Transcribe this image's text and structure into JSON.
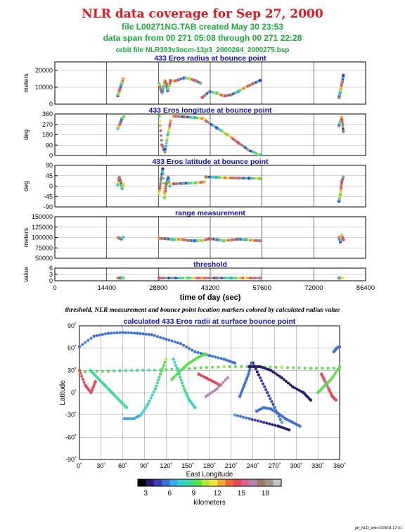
{
  "header": {
    "title": "NLR data coverage for Sep 27, 2000",
    "line1": "file L00271NG.TAB created May 30 23:53",
    "line2": "data span from 00 271 05:08 through 00 271 22:28",
    "line3": "orbit file NLR393v3ocm-13p3_2000264_2000275.bsp"
  },
  "caption": "threshold, NLR measurement and bounce point location markers colored by calculated radius value",
  "footer": "plt_NLR_info 010504 17:41",
  "colors": {
    "title": "#e8141e",
    "subtitle": "#1faa3c",
    "panel_title": "#1010c8",
    "colormap": [
      "#000000",
      "#2a1a6e",
      "#3b3fb0",
      "#3f72d6",
      "#3fa8e6",
      "#35d0d0",
      "#3ed89a",
      "#5ae04a",
      "#b4e63c",
      "#ece83c",
      "#f0a83c",
      "#ee6a3c",
      "#e8485a",
      "#d86496",
      "#b484b0",
      "#9c7a5a",
      "#a09a8a",
      "#c4c4c4"
    ]
  },
  "chart_data": [
    {
      "type": "scatter",
      "title": "433 Eros radius at bounce point",
      "ylabel": "meters",
      "xlim": [
        0,
        86400
      ],
      "ylim": [
        0,
        25000
      ],
      "yticks": [
        "0",
        "10000",
        "20000"
      ],
      "ytick_values": [
        0,
        10000,
        20000
      ],
      "grid": true,
      "segments": [
        {
          "x": [
            17500,
            17800,
            18100,
            18400,
            18700,
            19000
          ],
          "y": [
            5000,
            7000,
            9000,
            11000,
            13000,
            15000
          ]
        },
        {
          "x": [
            29000,
            29400,
            29800,
            30200,
            30600,
            31000,
            31400,
            31800,
            32200
          ],
          "y": [
            12000,
            9000,
            7000,
            10000,
            14000,
            12000,
            8000,
            11000,
            14000
          ]
        },
        {
          "x": [
            33000,
            34500,
            36000,
            37500,
            39000,
            40500
          ],
          "y": [
            13500,
            14500,
            15500,
            15000,
            14000,
            12500
          ]
        },
        {
          "x": [
            41000,
            43000,
            45000,
            47000,
            49000,
            51000,
            53000,
            55000,
            57000
          ],
          "y": [
            4000,
            7500,
            6500,
            4800,
            5500,
            7500,
            10000,
            12000,
            14000
          ]
        },
        {
          "x": [
            79000,
            79300,
            79600,
            79900,
            80200
          ],
          "y": [
            4000,
            7000,
            10000,
            13000,
            17000
          ]
        }
      ]
    },
    {
      "type": "scatter",
      "title": "433 Eros longitude at bounce point",
      "ylabel": "deg",
      "xlim": [
        0,
        86400
      ],
      "ylim": [
        0,
        360
      ],
      "yticks": [
        "0",
        "90",
        "180",
        "270",
        "360"
      ],
      "ytick_values": [
        0,
        90,
        180,
        270,
        360
      ],
      "grid": true,
      "segments": [
        {
          "x": [
            17500,
            17900,
            18300,
            18700,
            19100
          ],
          "y": [
            235,
            260,
            290,
            320,
            335
          ]
        },
        {
          "x": [
            29000,
            29800,
            30600,
            31400,
            32200
          ],
          "y": [
            340,
            90,
            30,
            180,
            300
          ]
        },
        {
          "x": [
            33000,
            36000,
            39000,
            41500
          ],
          "y": [
            340,
            335,
            328,
            320
          ]
        },
        {
          "x": [
            42000,
            45000,
            48000,
            51000,
            54000,
            57000
          ],
          "y": [
            300,
            240,
            180,
            110,
            45,
            5
          ]
        },
        {
          "x": [
            79000,
            79400,
            79800,
            80200
          ],
          "y": [
            260,
            300,
            330,
            210
          ]
        }
      ]
    },
    {
      "type": "scatter",
      "title": "433 Eros latitude at bounce point",
      "ylabel": "deg",
      "xlim": [
        0,
        86400
      ],
      "ylim": [
        -90,
        90
      ],
      "yticks": [
        "-90",
        "-45",
        "0",
        "45",
        "90"
      ],
      "ytick_values": [
        -90,
        -45,
        0,
        45,
        90
      ],
      "grid": true,
      "segments": [
        {
          "x": [
            17500,
            17900,
            18300,
            18700,
            19100
          ],
          "y": [
            5,
            40,
            20,
            -10,
            10
          ]
        },
        {
          "x": [
            29000,
            29500,
            30000,
            30500,
            31000,
            31500,
            32000
          ],
          "y": [
            -30,
            30,
            75,
            -50,
            10,
            40,
            0
          ]
        },
        {
          "x": [
            33000,
            36000,
            39000,
            41500
          ],
          "y": [
            10,
            12,
            14,
            18
          ]
        },
        {
          "x": [
            42000,
            45000,
            48000,
            51000,
            54000,
            57000
          ],
          "y": [
            40,
            38,
            36,
            35,
            34,
            33
          ]
        },
        {
          "x": [
            79000,
            79400,
            79800,
            80200
          ],
          "y": [
            -65,
            -35,
            20,
            40
          ]
        }
      ]
    },
    {
      "type": "scatter",
      "title": "range measurement",
      "ylabel": "meters",
      "xlim": [
        0,
        86400
      ],
      "ylim": [
        50000,
        150000
      ],
      "yticks": [
        "50000",
        "75000",
        "100000",
        "125000",
        "150000"
      ],
      "ytick_values": [
        50000,
        75000,
        100000,
        125000,
        150000
      ],
      "grid": true,
      "segments": [
        {
          "x": [
            17500,
            18000,
            18500,
            19000
          ],
          "y": [
            100000,
            98000,
            96000,
            101000
          ]
        },
        {
          "x": [
            29000,
            31000,
            33000,
            35000,
            37000,
            39000,
            41000,
            43000,
            45000,
            47000,
            49000,
            51000,
            53000,
            55000,
            57000
          ],
          "y": [
            98000,
            97000,
            95000,
            96000,
            93000,
            92000,
            93000,
            97000,
            95000,
            92000,
            94000,
            96000,
            95000,
            93000,
            92000
          ]
        },
        {
          "x": [
            79000,
            79400,
            79800,
            80200
          ],
          "y": [
            100000,
            90000,
            105000,
            95000
          ]
        }
      ]
    },
    {
      "type": "scatter",
      "title": "threshold",
      "ylabel": "value",
      "xlabel": "time of day (sec)",
      "xlim": [
        0,
        86400
      ],
      "ylim": [
        0,
        6
      ],
      "yticks": [
        "0",
        "3",
        "6"
      ],
      "ytick_values": [
        0,
        3,
        6
      ],
      "xticks": [
        "0",
        "14400",
        "28800",
        "43200",
        "57600",
        "72000",
        "86400"
      ],
      "xtick_values": [
        0,
        14400,
        28800,
        43200,
        57600,
        72000,
        86400
      ],
      "grid": true,
      "segments": [
        {
          "x": [
            17500,
            18000,
            18500,
            19000
          ],
          "y": [
            1.3,
            1.3,
            1.3,
            1.3
          ]
        },
        {
          "x": [
            29000,
            33000,
            37000,
            41000,
            45000,
            49000,
            53000,
            57000
          ],
          "y": [
            1.3,
            1.3,
            1.3,
            1.3,
            1.3,
            1.3,
            1.3,
            1.3
          ]
        },
        {
          "x": [
            79000,
            79500,
            80000
          ],
          "y": [
            1.3,
            1.3,
            1.3
          ]
        }
      ]
    },
    {
      "type": "scatter",
      "title": "calculated 433 Eros radii at surface bounce point",
      "xlabel": "East Longitude",
      "ylabel": "Latitude",
      "xlim": [
        0,
        360
      ],
      "ylim": [
        -90,
        90
      ],
      "xticks": [
        "0˚",
        "30˚",
        "60˚",
        "90˚",
        "120˚",
        "150˚",
        "180˚",
        "210˚",
        "240˚",
        "270˚",
        "300˚",
        "330˚",
        "360˚"
      ],
      "xtick_values": [
        0,
        30,
        60,
        90,
        120,
        150,
        180,
        210,
        240,
        270,
        300,
        330,
        360
      ],
      "yticks": [
        "90˚",
        "60˚",
        "30˚",
        "0˚",
        "-30˚",
        "-60˚",
        "-90˚"
      ],
      "ytick_values": [
        90,
        60,
        30,
        0,
        -30,
        -60,
        -90
      ],
      "grid": true,
      "tracks": [
        {
          "lon": [
            0,
            20,
            40,
            60,
            80,
            100,
            120,
            140,
            160,
            180,
            200,
            215
          ],
          "lat": [
            62,
            76,
            80,
            81,
            80,
            78,
            72,
            66,
            55,
            50,
            45,
            40
          ],
          "r": [
            5,
            5,
            5,
            5,
            5,
            5,
            5,
            5,
            5,
            5,
            5,
            5
          ]
        },
        {
          "lon": [
            0,
            40,
            80,
            120,
            160,
            200,
            240,
            280,
            320,
            360
          ],
          "lat": [
            28,
            29,
            30,
            31,
            33,
            35,
            35,
            34,
            33,
            33
          ],
          "r": [
            10,
            9,
            8,
            9,
            9,
            10,
            9,
            10,
            9,
            10
          ]
        },
        {
          "lon": [
            15,
            25,
            35,
            45,
            55,
            65
          ],
          "lat": [
            30,
            20,
            10,
            0,
            -10,
            -20
          ],
          "r": [
            8,
            8,
            8,
            8,
            8,
            8
          ]
        },
        {
          "lon": [
            62,
            75,
            85,
            95,
            105,
            112,
            120
          ],
          "lat": [
            -35,
            -35,
            -30,
            -15,
            5,
            25,
            45
          ],
          "r": [
            6,
            6,
            7,
            7,
            8,
            9,
            10
          ]
        },
        {
          "lon": [
            130,
            138,
            145,
            152,
            160
          ],
          "lat": [
            45,
            25,
            5,
            -10,
            -20
          ],
          "r": [
            7,
            8,
            9,
            8,
            7
          ]
        },
        {
          "lon": [
            128,
            140,
            152,
            165,
            175
          ],
          "lat": [
            18,
            30,
            40,
            48,
            52
          ],
          "r": [
            9,
            9,
            9,
            9,
            9
          ]
        },
        {
          "lon": [
            165,
            175,
            185,
            195
          ],
          "lat": [
            25,
            20,
            15,
            10
          ],
          "r": [
            14,
            14,
            14,
            14
          ]
        },
        {
          "lon": [
            175,
            190,
            205
          ],
          "lat": [
            -5,
            5,
            20
          ],
          "r": [
            16,
            16,
            16
          ]
        },
        {
          "lon": [
            215,
            235,
            255,
            275,
            290
          ],
          "lat": [
            -30,
            -35,
            -40,
            -45,
            -50
          ],
          "r": [
            6,
            5,
            4,
            3,
            3
          ]
        },
        {
          "lon": [
            240,
            250,
            260,
            270,
            280
          ],
          "lat": [
            40,
            20,
            0,
            -20,
            -40
          ],
          "r": [
            3,
            4,
            4,
            5,
            6
          ]
        },
        {
          "lon": [
            245,
            255,
            265,
            275,
            285,
            295,
            305
          ],
          "lat": [
            -25,
            -20,
            -22,
            -28,
            -35,
            -40,
            -45
          ],
          "r": [
            5,
            5,
            5,
            5,
            5,
            5,
            5
          ]
        },
        {
          "lon": [
            222,
            228,
            234,
            238
          ],
          "lat": [
            -5,
            10,
            25,
            40
          ],
          "r": [
            5,
            5,
            5,
            5
          ]
        },
        {
          "lon": [
            235,
            250,
            265,
            280,
            295,
            310,
            320
          ],
          "lat": [
            35,
            35,
            30,
            20,
            8,
            0,
            -10
          ],
          "r": [
            3,
            3,
            3,
            3,
            3,
            3,
            3
          ]
        },
        {
          "lon": [
            335,
            340,
            345,
            350,
            355
          ],
          "lat": [
            25,
            15,
            5,
            -5,
            -10
          ],
          "r": [
            14,
            15,
            15,
            14,
            14
          ]
        },
        {
          "lon": [
            0,
            8,
            16,
            22
          ],
          "lat": [
            30,
            10,
            0,
            15
          ],
          "r": [
            14,
            14,
            14,
            14
          ]
        },
        {
          "lon": [
            330,
            340,
            350,
            360
          ],
          "lat": [
            0,
            10,
            20,
            35
          ],
          "r": [
            9,
            9,
            9,
            9
          ]
        },
        {
          "lon": [
            352,
            356,
            360
          ],
          "lat": [
            55,
            60,
            62
          ],
          "r": [
            5,
            5,
            5
          ]
        }
      ]
    },
    {
      "type": "colorbar",
      "xlabel": "kilometers",
      "range": [
        2,
        20
      ],
      "ticks": [
        "3",
        "6",
        "9",
        "12",
        "15",
        "18"
      ],
      "tick_values": [
        3,
        6,
        9,
        12,
        15,
        18
      ]
    }
  ]
}
